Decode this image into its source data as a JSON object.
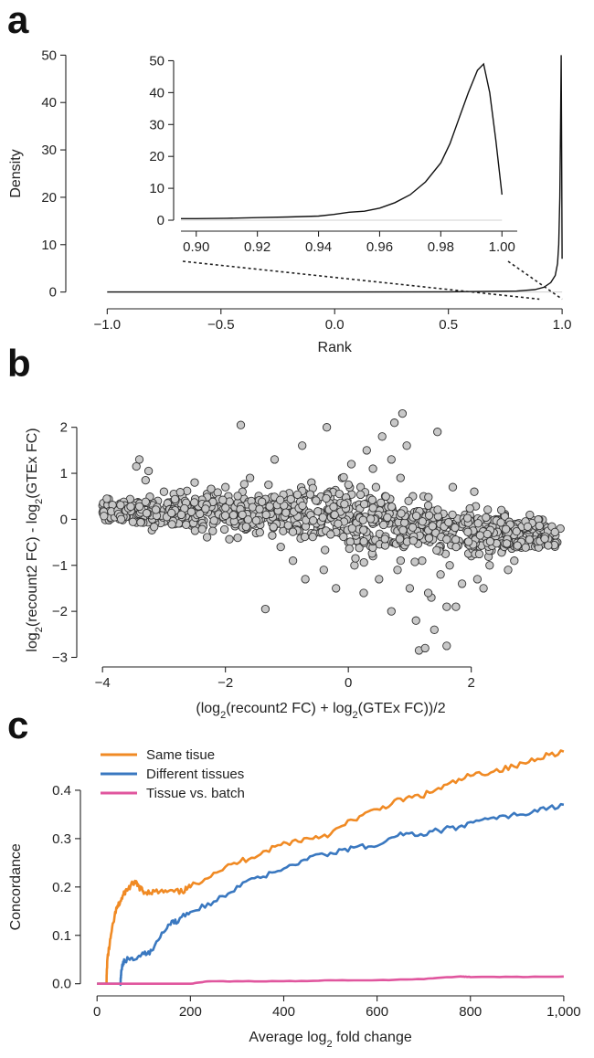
{
  "panels": {
    "a": {
      "letter": "a"
    },
    "b": {
      "letter": "b"
    },
    "c": {
      "letter": "c"
    }
  },
  "chart_data": [
    {
      "id": "a",
      "type": "line",
      "xlabel": "Rank",
      "ylabel": "Density",
      "xlim": [
        -1.15,
        1.1
      ],
      "ylim": [
        -2,
        52
      ],
      "xticks": [
        "−1.0",
        "−0.5",
        "0.0",
        "0.5",
        "1.0"
      ],
      "xtick_values": [
        -1.0,
        -0.5,
        0.0,
        0.5,
        1.0
      ],
      "yticks": [
        "0",
        "10",
        "20",
        "30",
        "40",
        "50"
      ],
      "ytick_values": [
        0,
        10,
        20,
        30,
        40,
        50
      ],
      "series": [
        {
          "x": [
            -1.0,
            -0.5,
            0.0,
            0.5,
            0.8,
            0.88,
            0.92,
            0.95,
            0.97,
            0.98,
            0.985,
            0.99,
            0.993,
            0.996,
            0.998,
            1.0
          ],
          "y": [
            0.0,
            0.0,
            0.0,
            0.05,
            0.2,
            0.5,
            1.0,
            2.0,
            3.5,
            6.0,
            10.0,
            20.0,
            35.0,
            50.0,
            30.0,
            7.0
          ]
        }
      ],
      "inset": {
        "xlim": [
          0.895,
          1.005
        ],
        "ylim": [
          -2,
          53
        ],
        "xticks": [
          "0.90",
          "0.92",
          "0.94",
          "0.96",
          "0.98",
          "1.00"
        ],
        "xtick_values": [
          0.9,
          0.92,
          0.94,
          0.96,
          0.98,
          1.0
        ],
        "yticks": [
          "0",
          "10",
          "20",
          "30",
          "40",
          "50"
        ],
        "ytick_values": [
          0,
          10,
          20,
          30,
          40,
          50
        ],
        "series": [
          {
            "x": [
              0.895,
              0.9,
              0.91,
              0.92,
              0.93,
              0.94,
              0.945,
              0.95,
              0.955,
              0.96,
              0.965,
              0.97,
              0.975,
              0.98,
              0.983,
              0.986,
              0.989,
              0.992,
              0.994,
              0.996,
              0.998,
              1.0
            ],
            "y": [
              0.5,
              0.5,
              0.6,
              0.8,
              1.0,
              1.3,
              1.8,
              2.5,
              2.8,
              3.8,
              5.5,
              8.0,
              12.0,
              18.0,
              24.0,
              32.0,
              40.0,
              47.0,
              49.0,
              40.0,
              25.0,
              8.0
            ]
          }
        ]
      }
    },
    {
      "id": "b",
      "type": "scatter",
      "xlabel": "(log2(recount2 FC) + log2(GTEx FC))/2",
      "ylabel": "log2(recount2 FC) - log2(GTEx FC)",
      "xlim": [
        -4.3,
        3.7
      ],
      "ylim": [
        -3.05,
        2.55
      ],
      "xticks": [
        "−4",
        "−2",
        "0",
        "2"
      ],
      "xtick_values": [
        -4,
        -2,
        0,
        2
      ],
      "yticks": [
        "−3",
        "−2",
        "−1",
        "0",
        "1",
        "2"
      ],
      "ytick_values": [
        -3,
        -2,
        -1,
        0,
        1,
        2
      ],
      "point_fill": "#c8c8c8",
      "point_stroke": "#333333",
      "points": [
        [
          -3.9,
          0.25
        ],
        [
          -3.8,
          0.15
        ],
        [
          -3.7,
          0.3
        ],
        [
          -3.6,
          0.2
        ],
        [
          -3.5,
          0.1
        ],
        [
          -3.4,
          0.35
        ],
        [
          -3.45,
          1.15
        ],
        [
          -3.4,
          1.3
        ],
        [
          -3.3,
          0.85
        ],
        [
          -3.25,
          1.05
        ],
        [
          -3.2,
          0.1
        ],
        [
          -3.1,
          0.4
        ],
        [
          -3.0,
          0.6
        ],
        [
          -2.9,
          -0.05
        ],
        [
          -2.8,
          0.25
        ],
        [
          -2.7,
          0.5
        ],
        [
          -2.6,
          0.0
        ],
        [
          -2.5,
          0.3
        ],
        [
          -2.5,
          0.8
        ],
        [
          -2.4,
          0.15
        ],
        [
          -2.3,
          0.55
        ],
        [
          -2.2,
          -0.1
        ],
        [
          -2.1,
          0.35
        ],
        [
          -2.0,
          0.7
        ],
        [
          -1.9,
          0.1
        ],
        [
          -1.8,
          -0.4
        ],
        [
          -1.75,
          2.05
        ],
        [
          -1.7,
          0.45
        ],
        [
          -1.6,
          0.9
        ],
        [
          -1.5,
          -0.3
        ],
        [
          -1.4,
          0.2
        ],
        [
          -1.35,
          -1.95
        ],
        [
          -1.3,
          0.75
        ],
        [
          -1.2,
          1.3
        ],
        [
          -1.1,
          -0.6
        ],
        [
          -1.0,
          0.5
        ],
        [
          -0.9,
          -0.9
        ],
        [
          -0.8,
          0.3
        ],
        [
          -0.75,
          1.6
        ],
        [
          -0.7,
          -1.3
        ],
        [
          -0.6,
          0.8
        ],
        [
          -0.5,
          -0.2
        ],
        [
          -0.4,
          -1.1
        ],
        [
          -0.35,
          2.0
        ],
        [
          -0.3,
          0.6
        ],
        [
          -0.2,
          -1.5
        ],
        [
          -0.1,
          0.9
        ],
        [
          0.0,
          -0.5
        ],
        [
          0.05,
          1.2
        ],
        [
          0.1,
          -1.0
        ],
        [
          0.2,
          0.3
        ],
        [
          0.25,
          -1.6
        ],
        [
          0.3,
          1.5
        ],
        [
          0.4,
          -0.8
        ],
        [
          0.45,
          0.7
        ],
        [
          0.5,
          -1.3
        ],
        [
          0.55,
          1.8
        ],
        [
          0.6,
          -0.4
        ],
        [
          0.65,
          0.2
        ],
        [
          0.7,
          -2.0
        ],
        [
          0.75,
          2.1
        ],
        [
          0.8,
          -1.1
        ],
        [
          0.85,
          0.9
        ],
        [
          0.88,
          2.3
        ],
        [
          0.9,
          -0.6
        ],
        [
          0.95,
          1.6
        ],
        [
          1.0,
          -1.5
        ],
        [
          1.05,
          0.5
        ],
        [
          1.1,
          -2.2
        ],
        [
          1.15,
          -2.85
        ],
        [
          1.2,
          -0.9
        ],
        [
          1.25,
          -2.8
        ],
        [
          1.3,
          0.3
        ],
        [
          1.35,
          -1.7
        ],
        [
          1.4,
          -2.4
        ],
        [
          1.45,
          1.9
        ],
        [
          1.5,
          -1.2
        ],
        [
          1.55,
          -0.3
        ],
        [
          1.6,
          -2.75
        ],
        [
          1.65,
          -1.0
        ],
        [
          1.7,
          0.7
        ],
        [
          1.75,
          -1.9
        ],
        [
          1.8,
          -0.5
        ],
        [
          1.85,
          -1.4
        ],
        [
          1.9,
          0.1
        ],
        [
          2.0,
          -0.8
        ],
        [
          2.05,
          0.6
        ],
        [
          2.1,
          -1.3
        ],
        [
          2.2,
          -0.4
        ],
        [
          2.3,
          -1.0
        ],
        [
          2.4,
          0.0
        ],
        [
          2.5,
          -0.7
        ],
        [
          2.6,
          -0.2
        ],
        [
          2.7,
          -0.9
        ],
        [
          2.8,
          -0.3
        ],
        [
          2.9,
          -0.6
        ],
        [
          3.0,
          -0.1
        ],
        [
          3.1,
          -0.4
        ],
        [
          3.2,
          -0.2
        ],
        [
          3.3,
          -0.3
        ],
        [
          3.4,
          -0.5
        ],
        [
          3.45,
          -0.2
        ],
        [
          -2.0,
          0.0
        ],
        [
          -1.5,
          0.3
        ],
        [
          -1.0,
          0.1
        ],
        [
          -0.5,
          0.4
        ],
        [
          0.0,
          0.0
        ],
        [
          0.5,
          0.2
        ],
        [
          1.0,
          -0.3
        ],
        [
          1.5,
          -0.6
        ],
        [
          2.0,
          -0.2
        ],
        [
          2.5,
          -0.3
        ],
        [
          3.0,
          -0.4
        ],
        [
          -3.0,
          0.2
        ],
        [
          -2.5,
          0.1
        ],
        [
          0.3,
          -0.3
        ],
        [
          0.6,
          0.5
        ],
        [
          0.9,
          -0.2
        ],
        [
          1.2,
          0.1
        ],
        [
          1.8,
          -0.1
        ],
        [
          -1.2,
          0.0
        ],
        [
          -0.6,
          -0.3
        ],
        [
          -0.2,
          0.2
        ],
        [
          0.2,
          0.7
        ],
        [
          0.4,
          1.1
        ],
        [
          0.7,
          1.3
        ],
        [
          1.3,
          -1.6
        ],
        [
          1.6,
          -1.9
        ],
        [
          2.2,
          -1.5
        ],
        [
          2.6,
          -1.1
        ]
      ]
    },
    {
      "id": "c",
      "type": "line",
      "xlabel": "Average log2 fold change",
      "ylabel": "Concordance",
      "xlim": [
        -20,
        1010
      ],
      "ylim": [
        -0.01,
        0.5
      ],
      "xticks": [
        "0",
        "200",
        "400",
        "600",
        "800",
        "1,000"
      ],
      "xtick_values": [
        0,
        200,
        400,
        600,
        800,
        1000
      ],
      "yticks": [
        "0.0",
        "0.1",
        "0.2",
        "0.3",
        "0.4"
      ],
      "ytick_values": [
        0.0,
        0.1,
        0.2,
        0.3,
        0.4
      ],
      "legend_position": "top-left",
      "series": [
        {
          "name": "Same tisue",
          "color": "#f08a24",
          "x": [
            0,
            20,
            22,
            30,
            40,
            50,
            60,
            70,
            80,
            90,
            100,
            120,
            150,
            180,
            200,
            250,
            300,
            350,
            400,
            450,
            500,
            550,
            600,
            650,
            700,
            750,
            800,
            850,
            900,
            950,
            1000
          ],
          "y": [
            0.0,
            0.0,
            0.05,
            0.1,
            0.15,
            0.17,
            0.19,
            0.2,
            0.21,
            0.2,
            0.19,
            0.19,
            0.19,
            0.19,
            0.2,
            0.23,
            0.25,
            0.27,
            0.29,
            0.3,
            0.31,
            0.34,
            0.36,
            0.38,
            0.39,
            0.41,
            0.43,
            0.44,
            0.45,
            0.47,
            0.48
          ]
        },
        {
          "name": "Different tissues",
          "color": "#3a78c0",
          "x": [
            0,
            50,
            52,
            60,
            80,
            100,
            120,
            150,
            170,
            200,
            250,
            300,
            350,
            400,
            450,
            500,
            550,
            600,
            650,
            700,
            750,
            800,
            850,
            900,
            950,
            1000
          ],
          "y": [
            0.0,
            0.0,
            0.03,
            0.05,
            0.05,
            0.06,
            0.07,
            0.12,
            0.13,
            0.15,
            0.17,
            0.2,
            0.22,
            0.24,
            0.26,
            0.27,
            0.28,
            0.29,
            0.31,
            0.31,
            0.32,
            0.33,
            0.34,
            0.35,
            0.36,
            0.37
          ]
        },
        {
          "name": "Tissue vs. batch",
          "color": "#e0569e",
          "x": [
            0,
            100,
            200,
            240,
            300,
            400,
            500,
            600,
            700,
            780,
            800,
            900,
            1000
          ],
          "y": [
            0.0,
            0.0,
            0.0,
            0.005,
            0.005,
            0.005,
            0.007,
            0.007,
            0.01,
            0.015,
            0.014,
            0.014,
            0.015
          ]
        }
      ]
    }
  ]
}
